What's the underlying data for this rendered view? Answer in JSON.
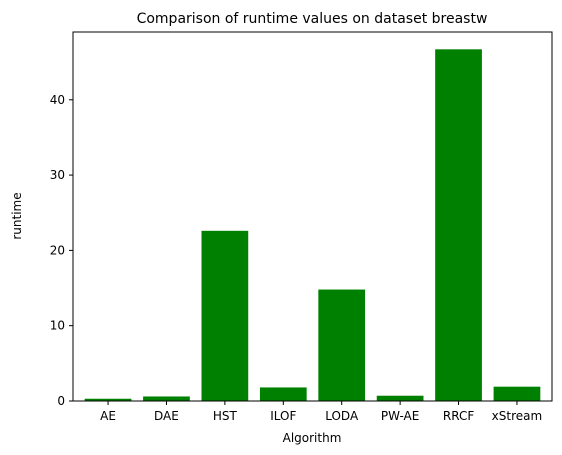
{
  "chart_data": {
    "type": "bar",
    "title": "Comparison of runtime values on dataset breastw",
    "xlabel": "Algorithm",
    "ylabel": "runtime",
    "categories": [
      "AE",
      "DAE",
      "HST",
      "ILOF",
      "LODA",
      "PW-AE",
      "RRCF",
      "xStream"
    ],
    "values": [
      0.3,
      0.6,
      22.6,
      1.8,
      14.8,
      0.7,
      46.7,
      1.9
    ],
    "ylim": [
      0,
      49
    ],
    "yticks": [
      0,
      10,
      20,
      30,
      40
    ],
    "grid": false,
    "bar_color": "#008000"
  }
}
